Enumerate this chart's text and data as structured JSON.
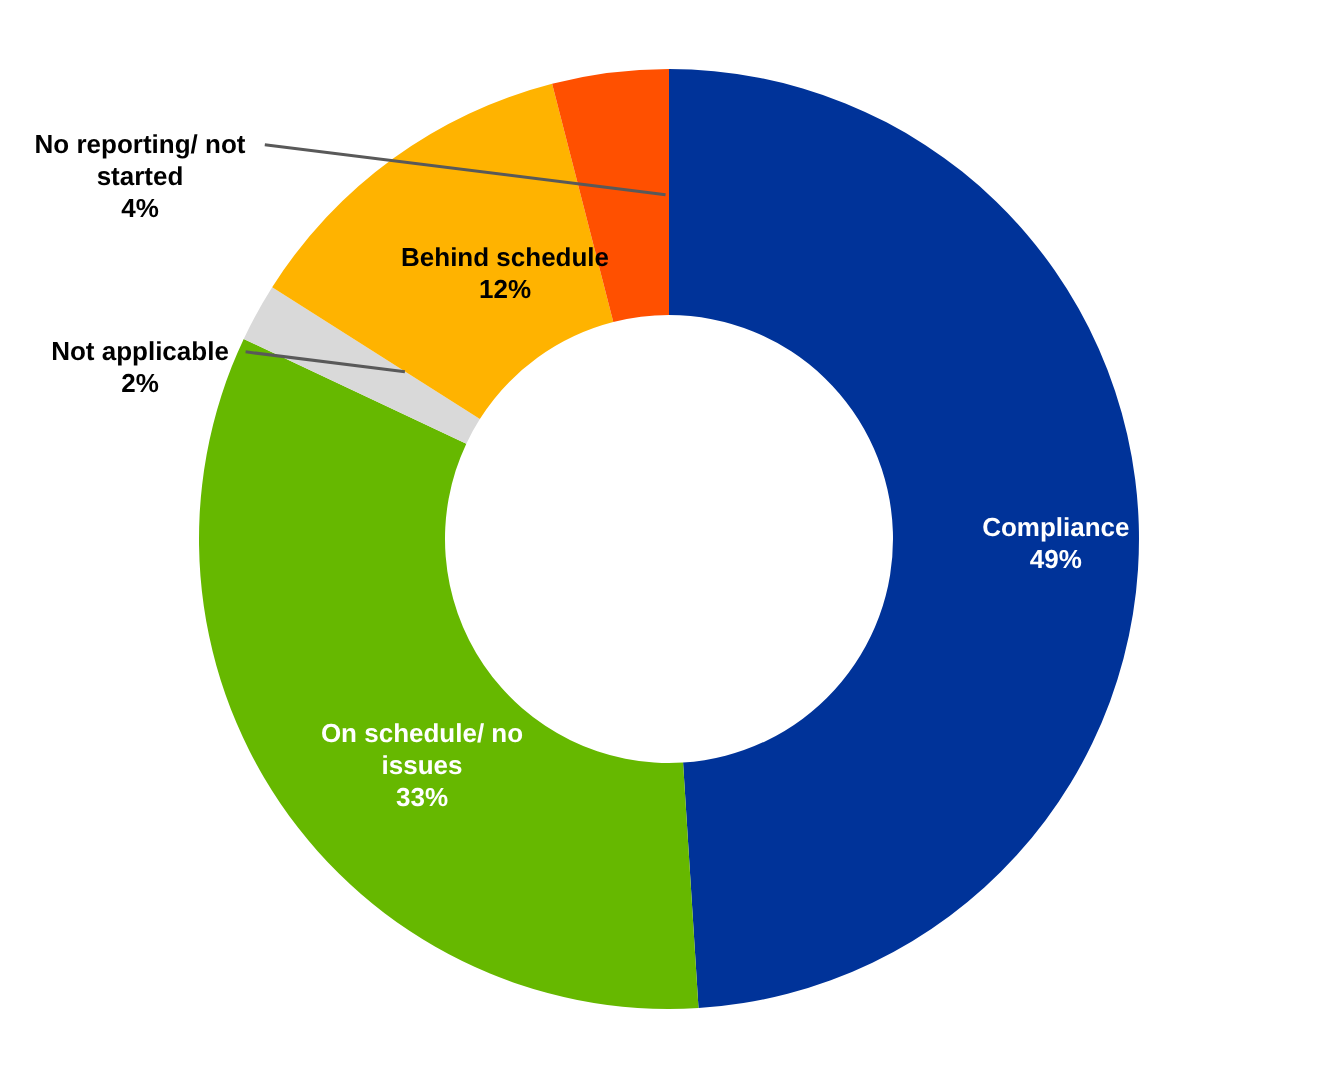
{
  "chart_data": {
    "type": "donut",
    "categories": [
      "Compliance",
      "On schedule/ no issues",
      "Not applicable",
      "Behind schedule",
      "No reporting/ not started"
    ],
    "values": [
      49,
      33,
      2,
      12,
      4
    ],
    "value_labels": [
      "49%",
      "33%",
      "2%",
      "12%",
      "4%"
    ],
    "colors": [
      "#003399",
      "#66b800",
      "#d9d9d9",
      "#ffb300",
      "#ff5000"
    ]
  }
}
